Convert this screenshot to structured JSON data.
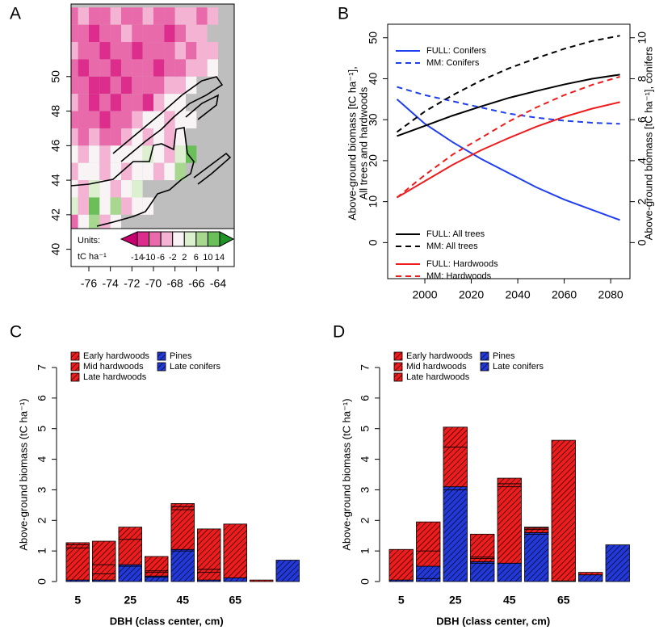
{
  "chart_data": [
    {
      "type": "heatmap",
      "title": "A",
      "x": [
        -77.5,
        -76.5,
        -75.5,
        -74.5,
        -73.5,
        -72.5,
        -71.5,
        -70.5,
        -69.5,
        -68.5,
        -67.5,
        -66.5,
        -65.5,
        -64.5,
        -63.5
      ],
      "y": [
        53.5,
        52.5,
        51.5,
        50.5,
        49.5,
        48.5,
        47.5,
        46.5,
        45.5,
        44.5,
        43.5,
        42.5,
        41.5,
        40.5
      ],
      "values": [
        [
          -10,
          -6,
          -10,
          -10,
          -6,
          -10,
          -10,
          -6,
          -10,
          -10,
          -6,
          -6,
          -10,
          -6,
          null
        ],
        [
          -10,
          -10,
          -14,
          -10,
          -10,
          -6,
          -10,
          -10,
          -10,
          -14,
          -10,
          -6,
          -6,
          null,
          null
        ],
        [
          -6,
          -10,
          -10,
          -14,
          -10,
          -10,
          -14,
          -10,
          -10,
          -10,
          -6,
          -10,
          -6,
          -6,
          null
        ],
        [
          -10,
          -14,
          -10,
          -10,
          -14,
          -10,
          -10,
          -10,
          -14,
          -10,
          -10,
          -6,
          -6,
          -2,
          null
        ],
        [
          -10,
          -10,
          -14,
          -14,
          -10,
          -14,
          -10,
          -10,
          -10,
          -6,
          -6,
          -2,
          null,
          null,
          null
        ],
        [
          -6,
          -10,
          -14,
          -10,
          -14,
          -10,
          -10,
          -14,
          -6,
          -2,
          -2,
          null,
          null,
          null,
          null
        ],
        [
          -10,
          -10,
          -10,
          -14,
          -10,
          -10,
          -6,
          -2,
          -2,
          -6,
          -2,
          -2,
          null,
          null,
          null
        ],
        [
          -6,
          -10,
          -6,
          -10,
          -10,
          -6,
          -2,
          -6,
          -2,
          -6,
          -2,
          null,
          null,
          null,
          null
        ],
        [
          -2,
          -6,
          -2,
          -6,
          -2,
          -2,
          -2,
          2,
          -2,
          -6,
          2,
          10,
          null,
          null,
          null
        ],
        [
          -6,
          -2,
          -2,
          -6,
          -2,
          -6,
          -2,
          -2,
          -6,
          -2,
          6,
          null,
          null,
          null,
          null
        ],
        [
          -2,
          -6,
          2,
          -2,
          -6,
          -2,
          2,
          null,
          null,
          null,
          null,
          null,
          null,
          null,
          null
        ],
        [
          2,
          -6,
          10,
          -2,
          6,
          -6,
          -2,
          -2,
          null,
          null,
          null,
          null,
          null,
          null,
          null
        ],
        [
          -10,
          -2,
          6,
          -6,
          -2,
          null,
          null,
          null,
          null,
          null,
          null,
          null,
          null,
          null,
          null
        ],
        [
          -14,
          6,
          -2,
          null,
          null,
          null,
          null,
          null,
          null,
          null,
          null,
          null,
          null,
          null,
          null
        ]
      ],
      "xlim": [
        -77.65,
        -62.5
      ],
      "ylim": [
        39,
        54.2
      ],
      "xticks": [
        -76,
        -74,
        -72,
        -70,
        -68,
        -66,
        -64
      ],
      "yticks": [
        40,
        42,
        44,
        46,
        48,
        50
      ],
      "colorbar": {
        "title": "Units:",
        "unit": "tC ha⁻¹",
        "levels": [
          -14,
          -10,
          -6,
          -2,
          2,
          6,
          10,
          14
        ],
        "colors": [
          "#c8006e",
          "#dc2d8c",
          "#e96aab",
          "#f5b3d3",
          "#f8f4f6",
          "#dcefcf",
          "#a8d890",
          "#6abf58",
          "#1e9427"
        ]
      }
    },
    {
      "type": "line",
      "title": "B",
      "ylabel": [
        "Above-ground biomass [tC ha⁻¹],",
        "All trees and hardwoods"
      ],
      "y2label": "Above-ground biomass [tC ha⁻¹], conifers",
      "x": [
        1988,
        2000,
        2012,
        2024,
        2036,
        2048,
        2060,
        2072,
        2084
      ],
      "series": [
        {
          "name": "FULL: Conifers",
          "color": "#1f3ff0",
          "dashed": false,
          "axis": "y2",
          "values": [
            7.0,
            5.8,
            4.9,
            4.1,
            3.4,
            2.7,
            2.1,
            1.6,
            1.1
          ]
        },
        {
          "name": "MM: Conifers",
          "color": "#1f3ff0",
          "dashed": true,
          "axis": "y2",
          "values": [
            7.6,
            7.2,
            6.9,
            6.6,
            6.3,
            6.1,
            5.95,
            5.85,
            5.8
          ]
        },
        {
          "name": "FULL: All trees",
          "color": "#000000",
          "dashed": false,
          "values": [
            26,
            28.5,
            31,
            33.2,
            35.3,
            37,
            38.6,
            40,
            41
          ]
        },
        {
          "name": "MM: All trees",
          "color": "#000000",
          "dashed": true,
          "values": [
            27,
            32,
            36,
            39.5,
            42.5,
            45,
            47.3,
            49.2,
            50.5
          ]
        },
        {
          "name": "FULL: Hardwoods",
          "color": "#ee1c1c",
          "dashed": false,
          "values": [
            11,
            15,
            19,
            22.5,
            25.5,
            28.3,
            30.7,
            32.7,
            34.3
          ]
        },
        {
          "name": "MM: Hardwoods",
          "color": "#ee1c1c",
          "dashed": true,
          "values": [
            11,
            16.5,
            21.5,
            25.5,
            29.5,
            33,
            36,
            38.5,
            40.5
          ]
        }
      ],
      "xlim": [
        1984,
        2088.3
      ],
      "ylim": [
        -8.8,
        53.3
      ],
      "y2lim": [
        -1.76,
        10.66
      ],
      "xticks": [
        2000,
        2020,
        2040,
        2060,
        2080
      ],
      "yticks": [
        0,
        10,
        20,
        30,
        40,
        50
      ],
      "y2ticks": [
        0,
        2,
        4,
        6,
        8,
        10
      ]
    },
    {
      "type": "bar",
      "title": "C",
      "xlabel": "DBH (class center, cm)",
      "ylabel": "Above-ground biomass (tC ha⁻¹)",
      "categories": [
        "5",
        null,
        "25",
        null,
        "45",
        null,
        "65",
        null,
        null
      ],
      "series": [
        {
          "name": "Early hardwoods",
          "color": "#ee1c1c",
          "values": [
            0.07,
            0.77,
            0,
            0.47,
            0.1,
            1.32,
            0,
            0,
            0
          ]
        },
        {
          "name": "Mid hardwoods",
          "color": "#ee1c1c",
          "values": [
            0.1,
            0.3,
            0.4,
            0.05,
            0.1,
            0.1,
            0,
            0,
            0
          ]
        },
        {
          "name": "Late hardwoods",
          "color": "#ee1c1c",
          "values": [
            1.05,
            0.2,
            0.83,
            0.12,
            1.3,
            0.25,
            1.76,
            0.05,
            0
          ]
        },
        {
          "name": "Pines",
          "color": "#2238d8",
          "values": [
            0,
            0,
            0.05,
            0.03,
            0.05,
            0,
            0,
            0,
            0
          ]
        },
        {
          "name": "Late conifers",
          "color": "#2238d8",
          "values": [
            0.05,
            0.05,
            0.5,
            0.15,
            1.0,
            0.05,
            0.12,
            0,
            0.7
          ]
        }
      ],
      "ylim": [
        0,
        7
      ],
      "yticks": [
        0,
        1,
        2,
        3,
        4,
        5,
        6,
        7
      ]
    },
    {
      "type": "bar",
      "title": "D",
      "xlabel": "DBH (class center, cm)",
      "ylabel": "Above-ground biomass (tC ha⁻¹)",
      "categories": [
        "5",
        null,
        "25",
        null,
        "45",
        null,
        "65",
        null,
        null
      ],
      "series": [
        {
          "name": "Early hardwoods",
          "color": "#ee1c1c",
          "values": [
            0,
            0.95,
            0.65,
            0.75,
            0.18,
            0.03,
            0,
            0,
            0
          ]
        },
        {
          "name": "Mid hardwoods",
          "color": "#ee1c1c",
          "values": [
            0,
            0,
            0,
            0.05,
            0.1,
            0.05,
            0,
            0,
            0
          ]
        },
        {
          "name": "Late hardwoods",
          "color": "#ee1c1c",
          "values": [
            1.0,
            0.5,
            1.3,
            0.1,
            2.5,
            0.1,
            4.6,
            0.08,
            0
          ]
        },
        {
          "name": "Pines",
          "color": "#2238d8",
          "values": [
            0,
            0.4,
            0.1,
            0.05,
            0,
            0.05,
            0,
            0,
            0
          ]
        },
        {
          "name": "Late conifers",
          "color": "#2238d8",
          "values": [
            0.05,
            0.1,
            3.0,
            0.6,
            0.6,
            1.55,
            0.02,
            0.22,
            1.2
          ]
        }
      ],
      "ylim": [
        0,
        7
      ],
      "yticks": [
        0,
        1,
        2,
        3,
        4,
        5,
        6,
        7
      ]
    }
  ]
}
